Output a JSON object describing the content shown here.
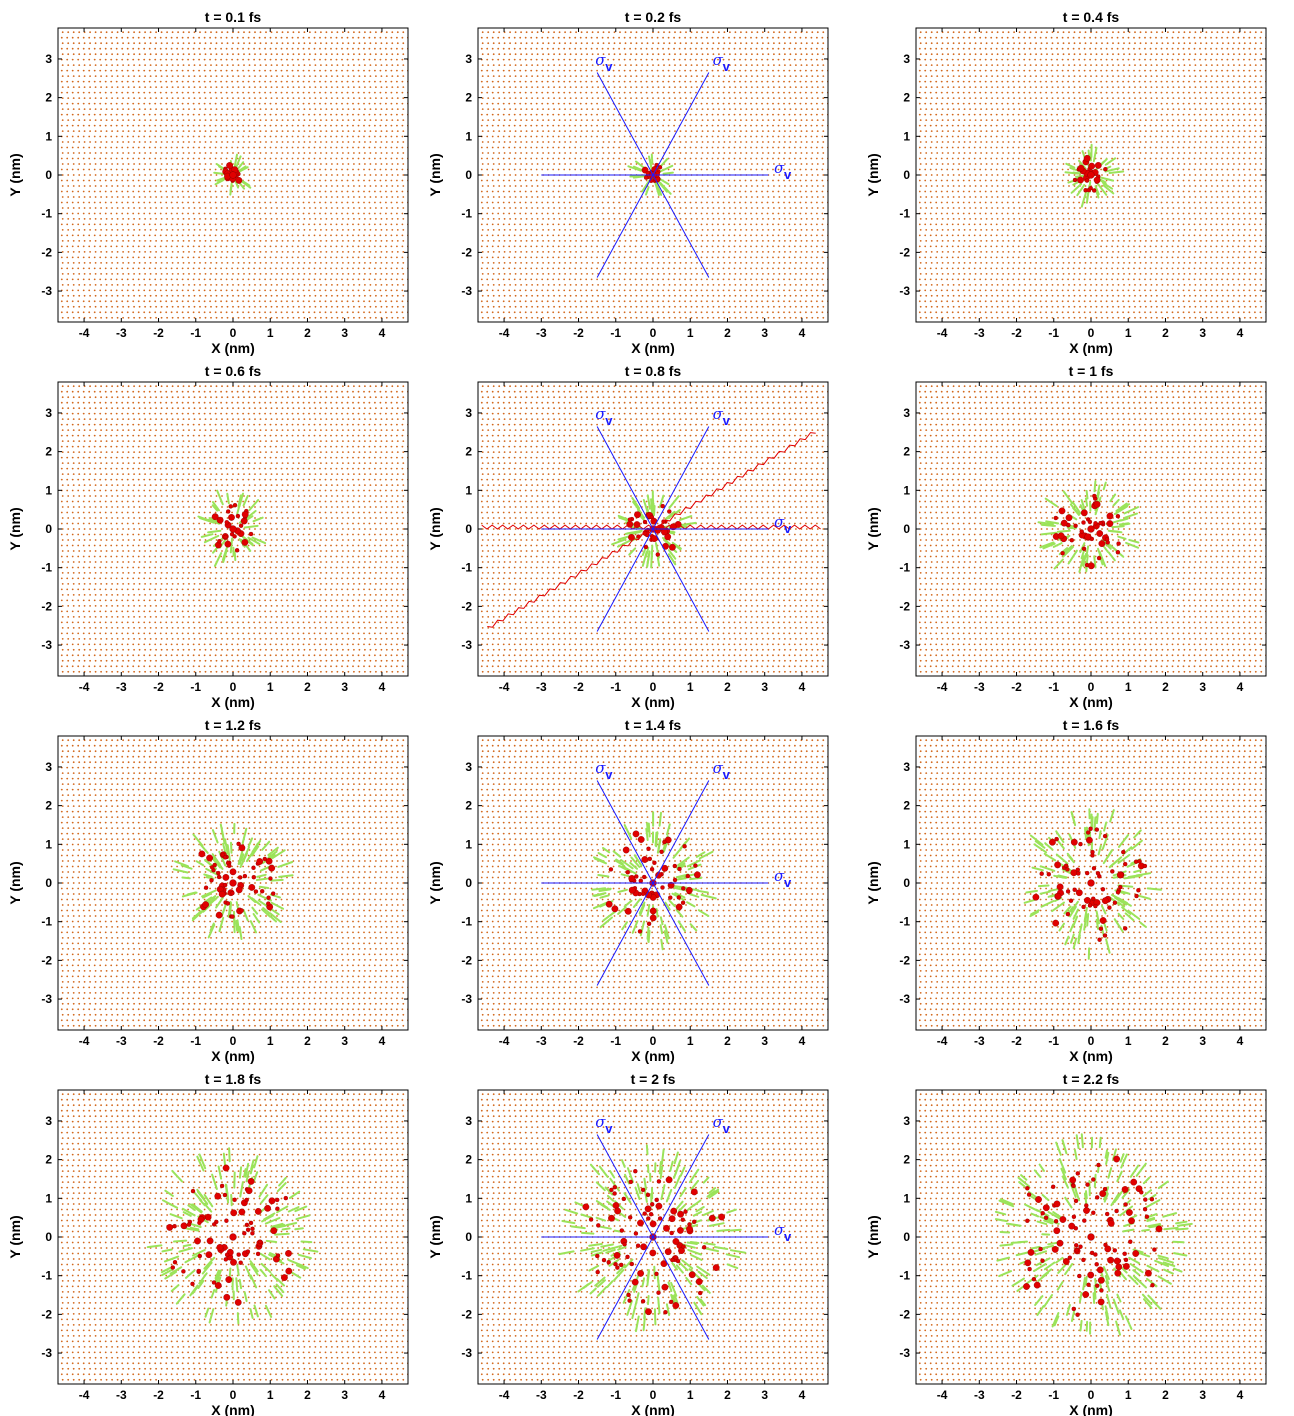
{
  "chart_data": {
    "type": "scatter",
    "xlabel": "X (nm)",
    "ylabel": "Y (nm)",
    "xlim": [
      -4.7,
      4.7
    ],
    "ylim": [
      -3.8,
      3.8
    ],
    "xticks": [
      -4,
      -3,
      -2,
      -1,
      0,
      1,
      2,
      3,
      4
    ],
    "yticks": [
      -3,
      -2,
      -1,
      0,
      1,
      2,
      3
    ],
    "lattice_color": "#d2691e",
    "excitation_color": "#e00000",
    "arrow_color": "#9be35a",
    "mirror_line_color": "#1a1aff",
    "zigzag_color": "#e00000",
    "mirror_label": "σ",
    "mirror_label_sub": "v",
    "panels": [
      {
        "title": "t = 0.1 fs",
        "front_radius": 0.3,
        "mirror_lines": false,
        "zigzag": false
      },
      {
        "title": "t = 0.2 fs",
        "front_radius": 0.35,
        "mirror_lines": true,
        "zigzag": false
      },
      {
        "title": "t = 0.4 fs",
        "front_radius": 0.5,
        "mirror_lines": false,
        "zigzag": false
      },
      {
        "title": "t = 0.6 fs",
        "front_radius": 0.7,
        "mirror_lines": false,
        "zigzag": false
      },
      {
        "title": "t = 0.8 fs",
        "front_radius": 0.8,
        "mirror_lines": true,
        "zigzag": true
      },
      {
        "title": "t = 1 fs",
        "front_radius": 1.1,
        "mirror_lines": false,
        "zigzag": false
      },
      {
        "title": "t = 1.2 fs",
        "front_radius": 1.3,
        "mirror_lines": false,
        "zigzag": false
      },
      {
        "title": "t = 1.4 fs",
        "front_radius": 1.5,
        "mirror_lines": true,
        "zigzag": false
      },
      {
        "title": "t = 1.6 fs",
        "front_radius": 1.7,
        "mirror_lines": false,
        "zigzag": false
      },
      {
        "title": "t = 1.8 fs",
        "front_radius": 2.0,
        "mirror_lines": false,
        "zigzag": false
      },
      {
        "title": "t = 2 fs",
        "front_radius": 2.2,
        "mirror_lines": true,
        "zigzag": false
      },
      {
        "title": "t = 2.2 fs",
        "front_radius": 2.4,
        "mirror_lines": false,
        "zigzag": false
      }
    ]
  }
}
